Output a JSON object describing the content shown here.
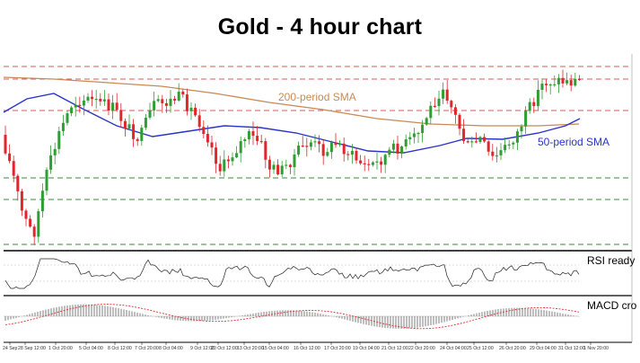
{
  "title": "Gold - 4 hour chart",
  "colors": {
    "bull": "#2e9e33",
    "bear": "#e0262c",
    "sma50": "#2a34c8",
    "sma200": "#c88a55",
    "resistance": "#d65a5a",
    "support": "#3c8a3c",
    "macd_hist": "#9a9a9a",
    "macd_signal": "#e03030",
    "rsi_line": "#222222"
  },
  "chart_data": [
    {
      "type": "candlestick",
      "title": "Gold - 4 hour chart",
      "x_tick_labels": [
        "24 Sep",
        "28 Sep 12:00",
        "1 Oct 20:00",
        "5 Oct 04:00",
        "8 Oct 12:00",
        "7 Oct 20:00",
        "8 Oct 04:00",
        "9 Oct 12:00",
        "20 Oct 12:00",
        "13 Oct 20:00",
        "15 Oct 04:00",
        "16 Oct 12:00",
        "17 Oct 20:00",
        "19 Oct 04:00",
        "21 Oct 12:00",
        "22 Oct 20:00",
        "24 Oct 04:00",
        "25 Oct 12:00",
        "26 Oct 20:00",
        "29 Oct 04:00",
        "31 Oct 12:00",
        "1 Nov 20:00"
      ],
      "y_axis": "price",
      "levels_dashed": {
        "resistance": [
          74,
          88,
          123
        ],
        "support": [
          198,
          222,
          272
        ]
      },
      "series": [
        {
          "name": "200-period SMA",
          "role": "moving-average"
        },
        {
          "name": "50-period SMA",
          "role": "moving-average"
        }
      ],
      "annotations": [
        "200-period SMA",
        "50-period SMA"
      ],
      "candles": [
        [
          0,
          0.05,
          0.08,
          0.0,
          0.12
        ],
        [
          1,
          0.12,
          0.18,
          0.0,
          0.2
        ],
        [
          2,
          0.2,
          0.16,
          0.12,
          0.3
        ],
        [
          3,
          0.18,
          0.24,
          0.12,
          0.3
        ],
        [
          4,
          0.24,
          0.35,
          0.2,
          0.4
        ],
        [
          5,
          0.35,
          0.48,
          0.3,
          0.52
        ],
        [
          6,
          0.48,
          0.62,
          0.4,
          0.66
        ],
        [
          7,
          0.62,
          0.75,
          0.55,
          0.8
        ],
        [
          8,
          0.75,
          0.86,
          0.7,
          0.9
        ],
        [
          9,
          0.86,
          0.8,
          0.74,
          0.92
        ],
        [
          10,
          0.8,
          0.9,
          0.76,
          0.95
        ],
        [
          11,
          0.9,
          0.82,
          0.74,
          0.96
        ],
        [
          12,
          0.82,
          0.72,
          0.64,
          0.86
        ],
        [
          13,
          0.72,
          0.6,
          0.52,
          0.78
        ],
        [
          14,
          0.6,
          0.7,
          0.54,
          0.74
        ],
        [
          15,
          0.7,
          0.8,
          0.66,
          0.84
        ],
        [
          16,
          0.8,
          0.88,
          0.72,
          0.94
        ],
        [
          17,
          0.88,
          0.78,
          0.7,
          0.92
        ],
        [
          18,
          0.78,
          0.68,
          0.6,
          0.82
        ],
        [
          19,
          0.68,
          0.62,
          0.54,
          0.74
        ]
      ],
      "ohlc_note": "Candles are normalized 0-1 price estimates; the price axis shows no tick values."
    },
    {
      "type": "line",
      "title": "RSI ready",
      "series": [
        {
          "name": "RSI ready"
        }
      ]
    },
    {
      "type": "bar",
      "title": "MACD cro",
      "series": [
        {
          "name": "MACD cro"
        }
      ]
    }
  ],
  "labels": {
    "sma200": "200-period SMA",
    "sma50": "50-period SMA",
    "rsi": "RSI ready",
    "macd": "MACD cro"
  }
}
